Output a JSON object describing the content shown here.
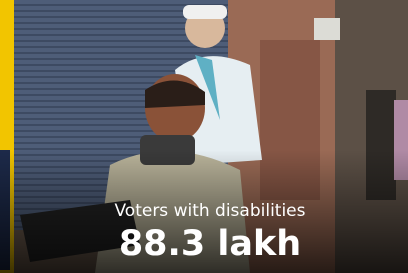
{
  "caption": {
    "label": "Voters with disabilities",
    "value": "88.3 lakh"
  }
}
